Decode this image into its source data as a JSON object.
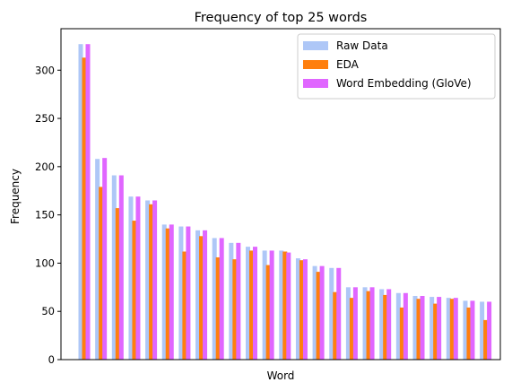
{
  "chart_data": {
    "type": "bar",
    "title": "Frequency of top 25 words",
    "xlabel": "Word",
    "ylabel": "Frequency",
    "ylim": [
      0,
      343
    ],
    "yticks": [
      0,
      50,
      100,
      150,
      200,
      250,
      300
    ],
    "grid": false,
    "legend_position": "top-right",
    "categories_count": 25,
    "series": [
      {
        "name": "Raw Data",
        "color": "#aec7f7",
        "values": [
          327,
          208,
          191,
          169,
          165,
          140,
          138,
          134,
          126,
          121,
          117,
          113,
          113,
          105,
          97,
          95,
          75,
          75,
          73,
          69,
          66,
          65,
          64,
          61,
          60
        ]
      },
      {
        "name": "EDA",
        "color": "#ff7f0e",
        "values": [
          313,
          179,
          157,
          144,
          161,
          136,
          112,
          128,
          106,
          104,
          113,
          98,
          112,
          103,
          91,
          70,
          64,
          71,
          67,
          54,
          63,
          58,
          63,
          54,
          41
        ]
      },
      {
        "name": "Word Embedding (GloVe)",
        "color": "#e066ff",
        "values": [
          327,
          209,
          191,
          169,
          165,
          140,
          138,
          134,
          126,
          121,
          117,
          113,
          111,
          104,
          97,
          95,
          75,
          75,
          73,
          69,
          66,
          65,
          64,
          61,
          60
        ]
      }
    ]
  }
}
